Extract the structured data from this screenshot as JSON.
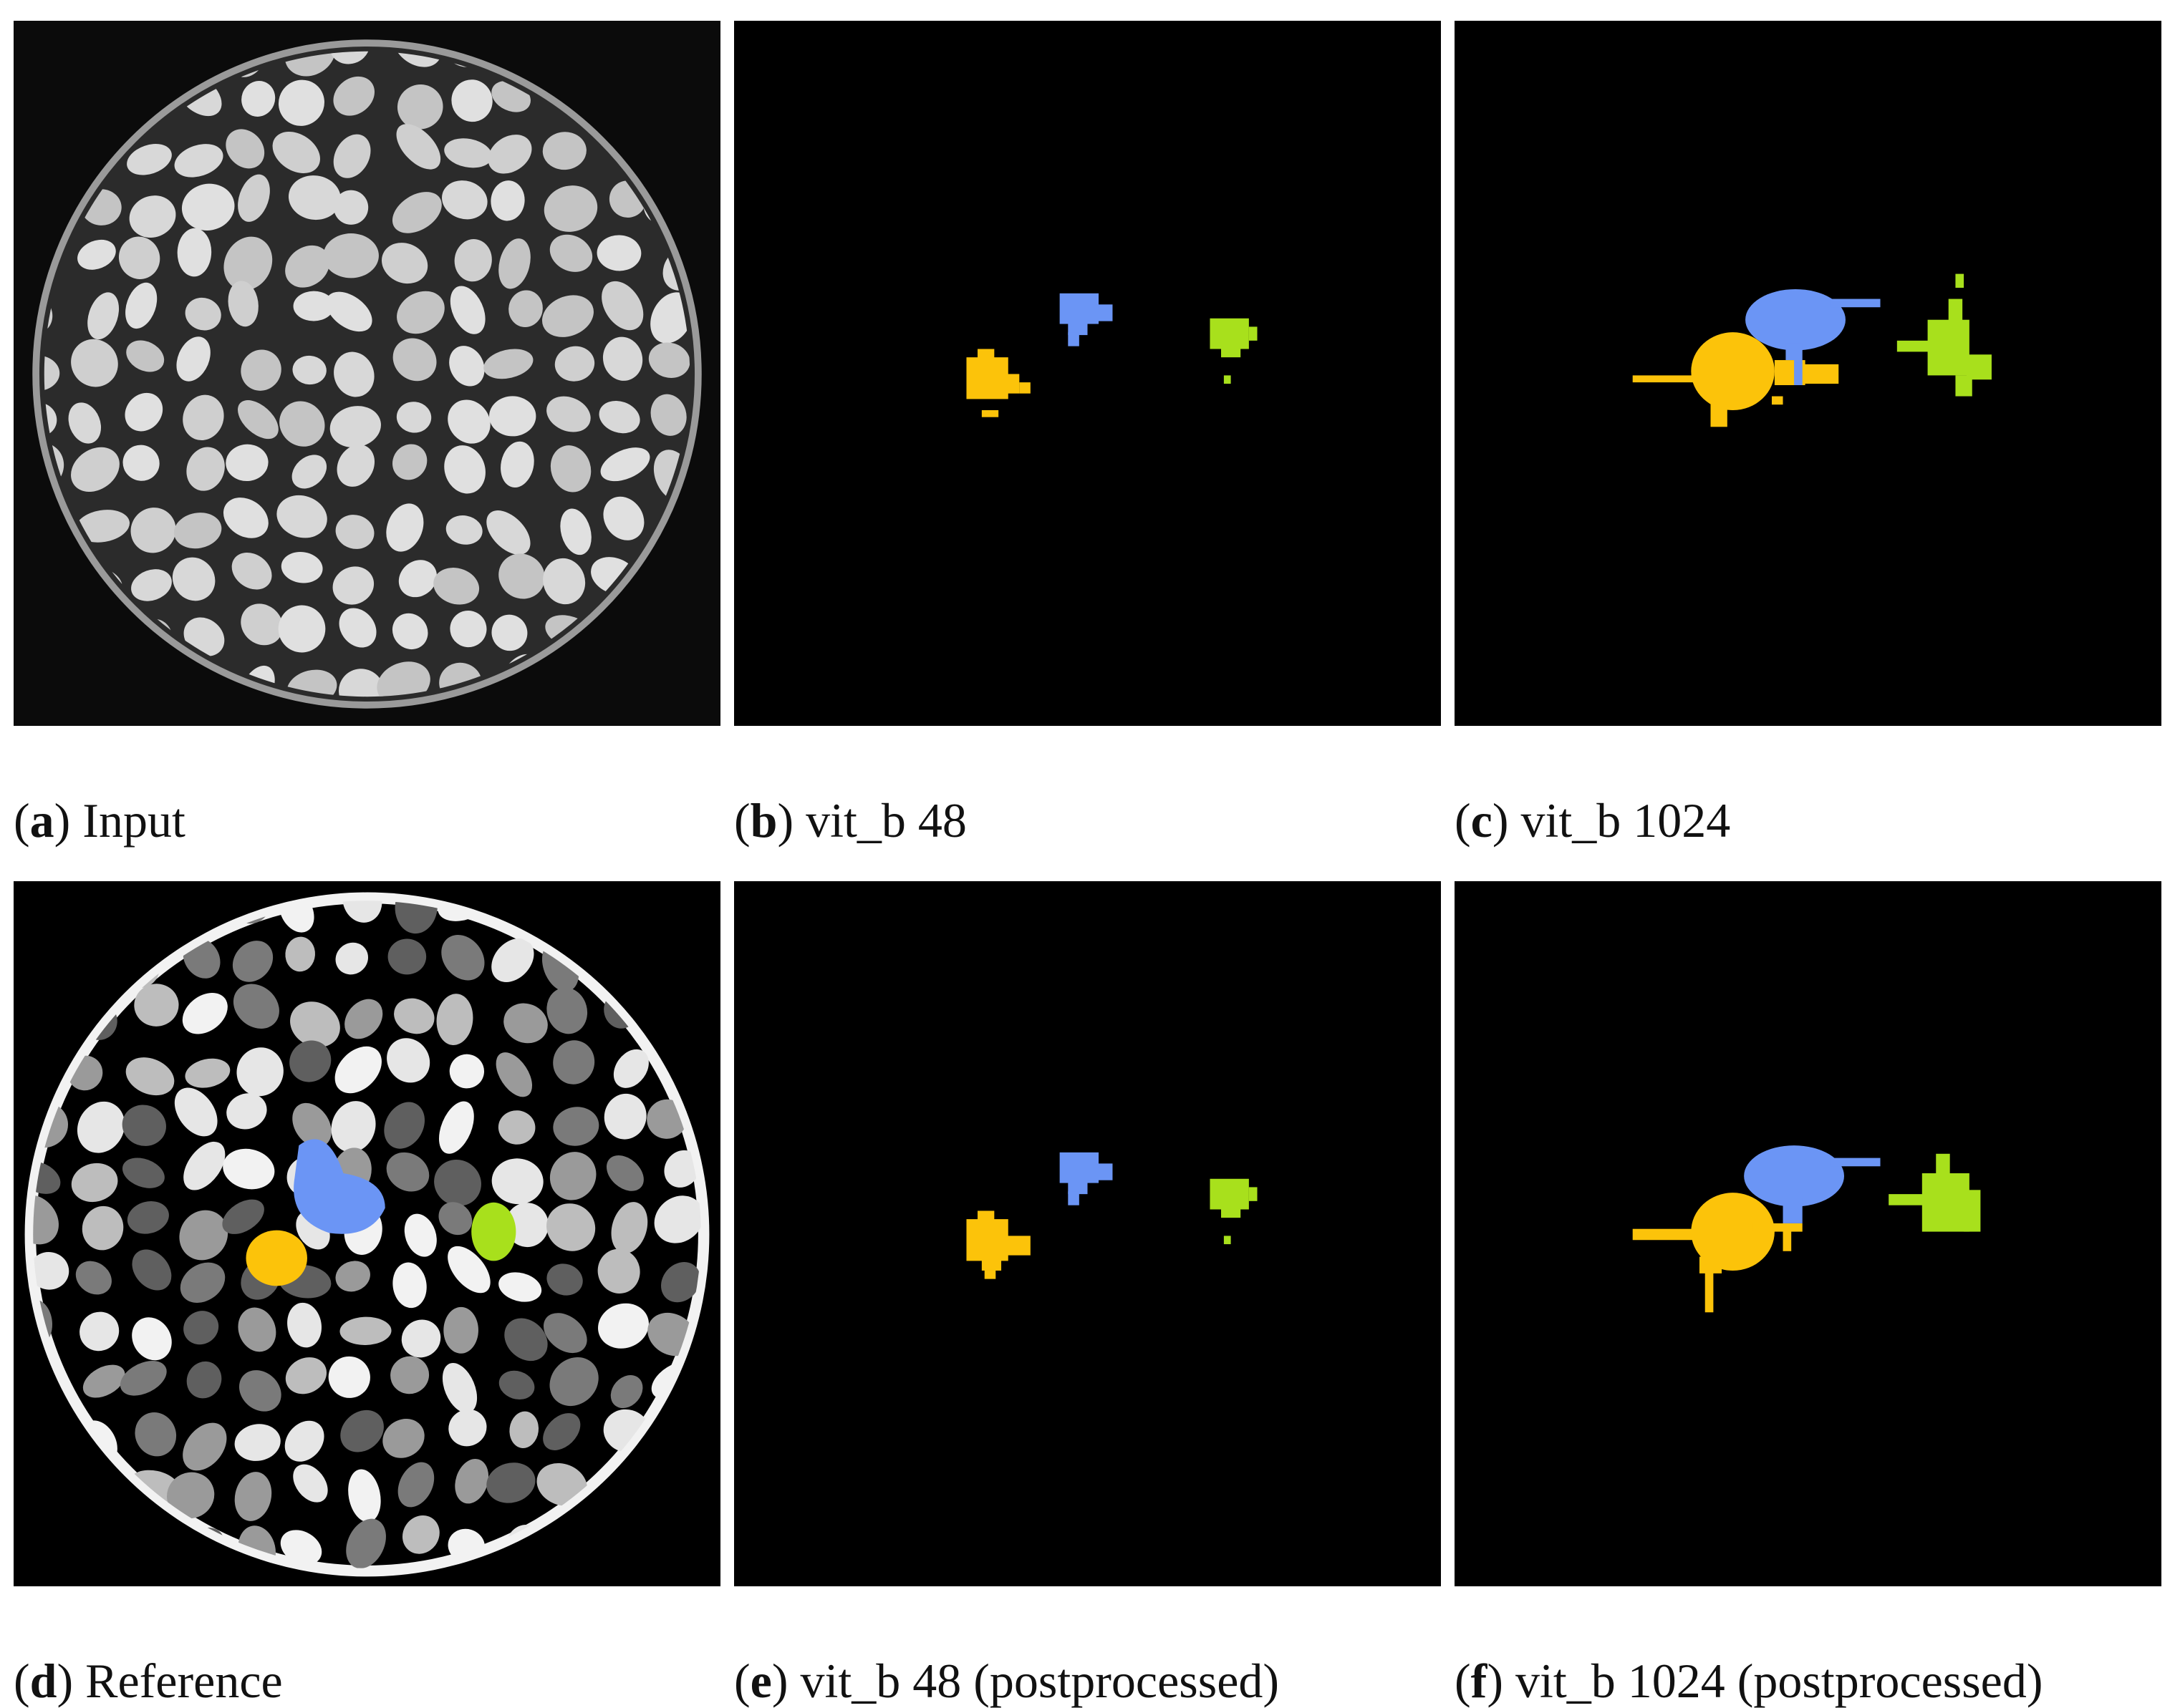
{
  "figure": {
    "panels": [
      {
        "caption_parts": [
          "(",
          "a",
          ") Input"
        ]
      },
      {
        "caption_parts": [
          "(",
          "b",
          ") vit_b 48"
        ]
      },
      {
        "caption_parts": [
          "(",
          "c",
          ") vit_b 1024"
        ]
      },
      {
        "caption_parts": [
          "(",
          "d",
          ") Reference"
        ]
      },
      {
        "caption_parts": [
          "(",
          "e",
          ") vit_b 48 (postprocessed)"
        ]
      },
      {
        "caption_parts": [
          "(",
          "f",
          ") vit_b 1024 (postprocessed)"
        ]
      }
    ]
  }
}
